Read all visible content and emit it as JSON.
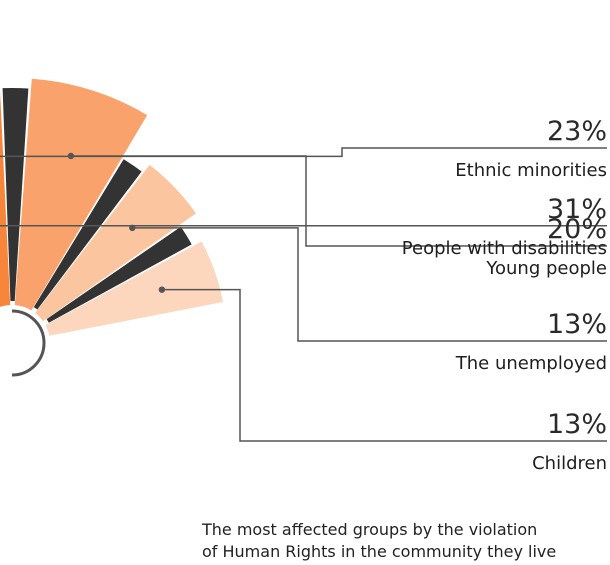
{
  "chart_data": {
    "type": "pie",
    "title": "",
    "caption_lines": [
      "The most affected groups by the violation",
      "of Human Rights in the community they live"
    ],
    "series": [
      {
        "label": "People with disabilities",
        "value": 31,
        "value_label": "31%",
        "color": "#ef6c23"
      },
      {
        "label": "Ethnic minorities",
        "value": 23,
        "value_label": "23%",
        "color": "#f7853a"
      },
      {
        "label": "Young people",
        "value": 20,
        "value_label": "20%",
        "color": "#f9a26b"
      },
      {
        "label": "The unemployed",
        "value": 13,
        "value_label": "13%",
        "color": "#fbc59f"
      },
      {
        "label": "Children",
        "value": 13,
        "value_label": "13%",
        "color": "#fcd7bd"
      }
    ],
    "inner_labels": [
      {
        "index": 0,
        "number": "31",
        "suffix": "%"
      },
      {
        "index": 1,
        "number": "23",
        "suffix": "%"
      }
    ],
    "separator_color": "#333333",
    "leader_color": "#555555"
  }
}
